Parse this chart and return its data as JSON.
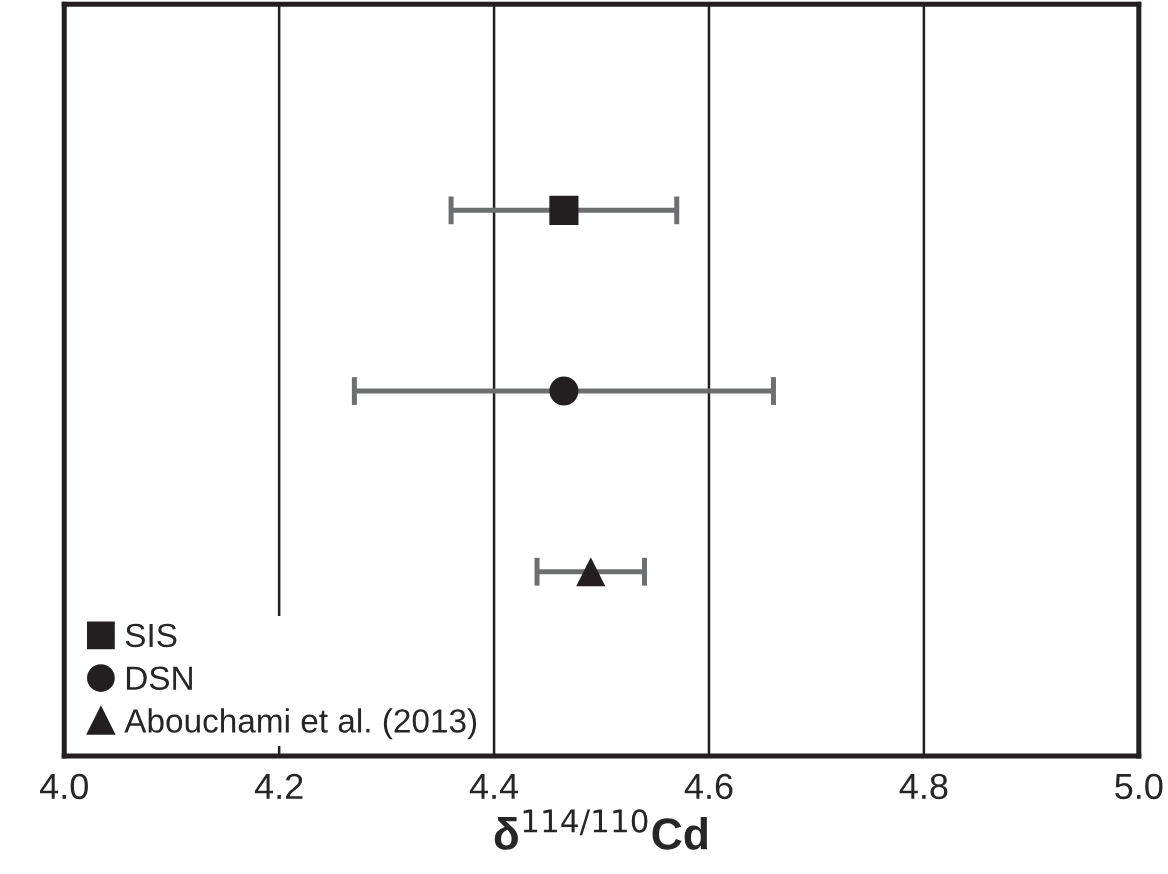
{
  "chart_data": {
    "type": "scatter",
    "orientation": "horizontal",
    "xlabel": "δ$^{114/110}$Cd",
    "categories": [
      null,
      null,
      null
    ],
    "series": [
      {
        "name": "SIS",
        "color": "#231f20",
        "marker": "square",
        "values": [
          4.465,
          null,
          null
        ],
        "errors": [
          0.105,
          null,
          null
        ]
      },
      {
        "name": "DSN",
        "color": "#231f20",
        "marker": "circle",
        "values": [
          null,
          4.465,
          null
        ],
        "errors": [
          null,
          0.195,
          null
        ]
      },
      {
        "name": "Abouchami et al. (2013)",
        "color": "#231f20",
        "marker": "triangle",
        "values": [
          null,
          null,
          4.49
        ],
        "errors": [
          null,
          null,
          0.05
        ]
      }
    ],
    "xlim": [
      4.0,
      5.0
    ],
    "xticks": [
      {
        "value": 4.0,
        "label": "4.0"
      },
      {
        "value": 4.2,
        "label": "4.2"
      },
      {
        "value": 4.4,
        "label": "4.4"
      },
      {
        "value": 4.6,
        "label": "4.6"
      },
      {
        "value": 4.8,
        "label": "4.8"
      },
      {
        "value": 5.0,
        "label": "5.0"
      }
    ],
    "grid": "x",
    "legend": "bottom left",
    "tick_labels": "x"
  }
}
